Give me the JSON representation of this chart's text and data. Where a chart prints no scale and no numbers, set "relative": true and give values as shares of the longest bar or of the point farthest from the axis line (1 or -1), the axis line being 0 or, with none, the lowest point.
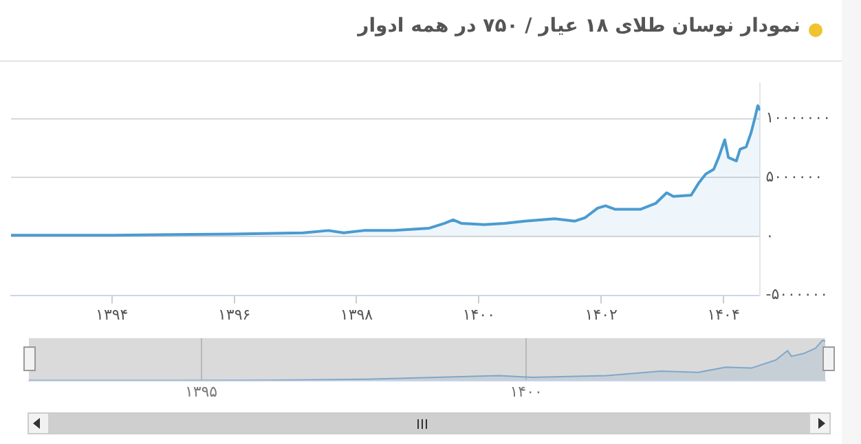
{
  "chart_data": [
    {
      "type": "area",
      "title": "نمودار نوسان طلای ۱۸ عیار / ۷۵۰ در همه ادوار",
      "color": "#4a9bd1",
      "grid": "y",
      "marker": "none",
      "x": [
        1392.35,
        1394,
        1395.98,
        1397.13,
        1397.54,
        1397.79,
        1398.12,
        1398.61,
        1399.19,
        1399.43,
        1399.58,
        1399.72,
        1400.09,
        1400.42,
        1400.75,
        1401.24,
        1401.57,
        1401.74,
        1401.94,
        1402.07,
        1402.23,
        1402.64,
        1402.89,
        1403.07,
        1403.18,
        1403.47,
        1403.59,
        1403.71,
        1403.84,
        1403.92,
        1404.02,
        1404.08,
        1404.21,
        1404.27,
        1404.37,
        1404.45,
        1404.51,
        1404.56,
        1404.6
      ],
      "values": [
        100000,
        100000,
        200000,
        300000,
        500000,
        300000,
        500000,
        500000,
        700000,
        1100000,
        1400000,
        1100000,
        1000000,
        1100000,
        1300000,
        1500000,
        1300000,
        1600000,
        2400000,
        2600000,
        2300000,
        2300000,
        2800000,
        3700000,
        3400000,
        3500000,
        4500000,
        5300000,
        5700000,
        6700000,
        8200000,
        6700000,
        6400000,
        7400000,
        7600000,
        8800000,
        10000000,
        11100000,
        10700000
      ],
      "xlim": [
        1392.35,
        1404.6
      ],
      "xticks": [
        {
          "value": 1394,
          "label": "۱۳۹۴"
        },
        {
          "value": 1396,
          "label": "۱۳۹۶"
        },
        {
          "value": 1398,
          "label": "۱۳۹۸"
        },
        {
          "value": 1400,
          "label": "۱۴۰۰"
        },
        {
          "value": 1402,
          "label": "۱۴۰۲"
        },
        {
          "value": 1404,
          "label": "۱۴۰۴"
        }
      ],
      "ylim": [
        -5000000,
        13000000
      ],
      "yticks": [
        {
          "value": -5000000,
          "label": "-۵۰۰۰۰۰۰"
        },
        {
          "value": 0,
          "label": "۰"
        },
        {
          "value": 5000000,
          "label": "۵۰۰۰۰۰۰"
        },
        {
          "value": 10000000,
          "label": "۱۰۰۰۰۰۰۰"
        }
      ]
    },
    {
      "type": "area",
      "relative": true,
      "color": "#7fa7c9",
      "grid": "x",
      "marker": "none",
      "tick_labels": "x",
      "x": [
        1392.35,
        1396,
        1397.54,
        1399.58,
        1400.09,
        1401.24,
        1402.07,
        1402.64,
        1403.07,
        1403.47,
        1403.84,
        1404.02,
        1404.08,
        1404.27,
        1404.45,
        1404.56,
        1404.6
      ],
      "values": [
        0,
        0.005,
        0.03,
        0.12,
        0.08,
        0.12,
        0.23,
        0.2,
        0.33,
        0.31,
        0.51,
        0.74,
        0.6,
        0.67,
        0.8,
        1,
        0.97
      ],
      "xlim": [
        1392.35,
        1404.6
      ],
      "xticks": [
        {
          "value": 1395,
          "label": "۱۳۹۵"
        },
        {
          "value": 1400,
          "label": "۱۴۰۰"
        }
      ]
    }
  ]
}
